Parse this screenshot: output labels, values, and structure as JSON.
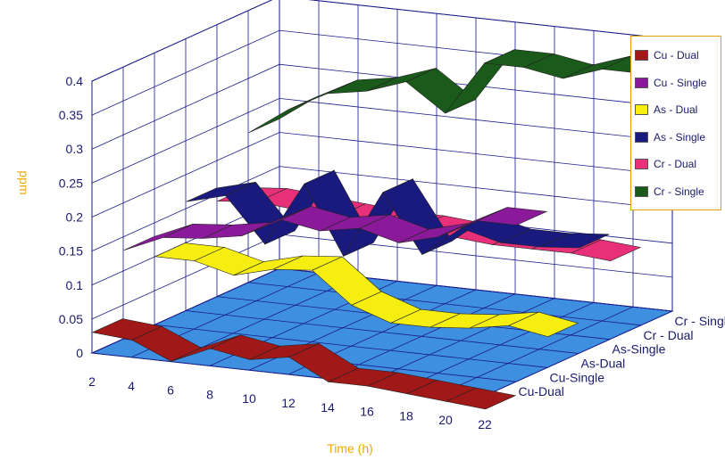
{
  "chart_data": {
    "type": "line",
    "subtype": "3d-ribbon",
    "title": "",
    "xlabel": "Time (h)",
    "ylabel": "ppm",
    "x": [
      2,
      4,
      6,
      8,
      10,
      12,
      14,
      16,
      18,
      20,
      22
    ],
    "ylim": [
      0,
      0.4
    ],
    "yticks": [
      "0",
      "0.05",
      "0.1",
      "0.15",
      "0.2",
      "0.25",
      "0.3",
      "0.35",
      "0.4"
    ],
    "xticks": [
      "2",
      "4",
      "6",
      "8",
      "10",
      "12",
      "14",
      "16",
      "18",
      "20",
      "22"
    ],
    "depth_labels": [
      "Cu-Dual",
      "Cu-Single",
      "As-Dual",
      "As-Single",
      "Cr - Dual",
      "Cr - Single"
    ],
    "grid": true,
    "legend_position": "right",
    "series": [
      {
        "name": "Cu - Dual",
        "color": "#a01818",
        "values": [
          0.03,
          0.025,
          0.0,
          0.025,
          0.015,
          0.025,
          -0.005,
          -0.005,
          -0.01,
          -0.015,
          -0.02
        ]
      },
      {
        "name": "Cu - Single",
        "color": "#8a1a9a",
        "values": [
          0.13,
          0.155,
          0.16,
          0.17,
          0.2,
          0.19,
          0.2,
          0.185,
          0.2,
          0.23,
          0.23
        ]
      },
      {
        "name": "As - Dual",
        "color": "#f5ee10",
        "values": [
          0.1,
          0.1,
          0.085,
          0.1,
          0.105,
          0.06,
          0.04,
          0.04,
          0.045,
          0.055,
          0.045
        ]
      },
      {
        "name": "As - Single",
        "color": "#1a1a7e",
        "values": [
          0.16,
          0.175,
          0.11,
          0.205,
          0.105,
          0.205,
          0.12,
          0.165,
          0.15,
          0.15,
          0.155
        ]
      },
      {
        "name": "Cr - Dual",
        "color": "#e8307a",
        "values": [
          0.14,
          0.145,
          0.14,
          0.135,
          0.13,
          0.13,
          0.125,
          0.12,
          0.12,
          0.12,
          0.115
        ]
      },
      {
        "name": "Cr - Single",
        "color": "#1a5a1a",
        "values": [
          0.22,
          0.26,
          0.29,
          0.3,
          0.32,
          0.28,
          0.36,
          0.36,
          0.35,
          0.37,
          0.37
        ]
      }
    ]
  }
}
